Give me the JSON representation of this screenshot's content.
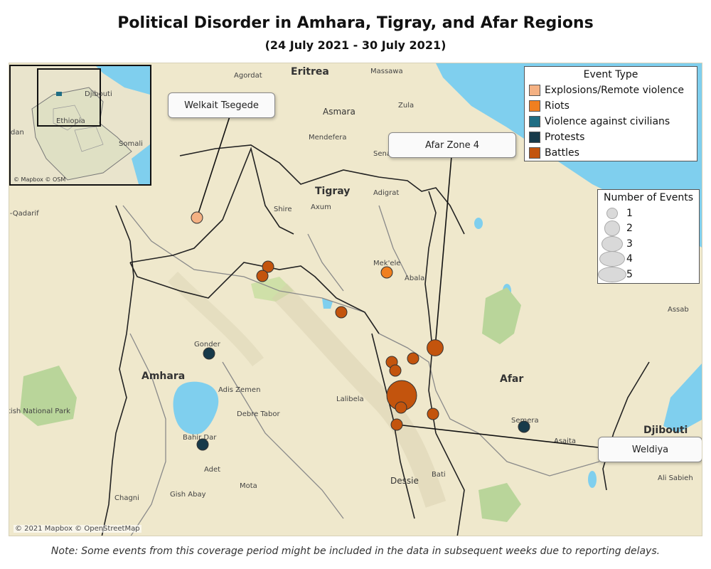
{
  "title": "Political Disorder in Amhara, Tigray, and Afar Regions",
  "subtitle": "(24 July 2021 - 30 July 2021)",
  "note": "Note: Some events from this coverage period might be included in the data in subsequent weeks due to reporting delays.",
  "map_credit": "© 2021 Mapbox © OpenStreetMap",
  "inset": {
    "credit": "© Mapbox © OSM",
    "labels": {
      "djibouti": "Djibouti",
      "ethiopia": "Ethiopia",
      "somali": "Somali",
      "sudan": "dan"
    }
  },
  "legend_event_type": {
    "title": "Event Type",
    "items": [
      {
        "label": "Explosions/Remote violence",
        "color": "#f4b183"
      },
      {
        "label": "Riots",
        "color": "#f07f1f"
      },
      {
        "label": "Violence against civilians",
        "color": "#1f6e84"
      },
      {
        "label": "Protests",
        "color": "#173a4a"
      },
      {
        "label": "Battles",
        "color": "#c3540d"
      }
    ]
  },
  "legend_size": {
    "title": "Number of Events",
    "items": [
      "1",
      "2",
      "3",
      "4",
      "5"
    ]
  },
  "callouts": {
    "welkait": "Welkait Tsegede",
    "afar4": "Afar Zone 4",
    "weldiya": "Weldiya"
  },
  "places": {
    "eritrea": "Eritrea",
    "tigray": "Tigray",
    "amhara": "Amhara",
    "afar": "Afar",
    "djibouti": "Djibouti",
    "agordat": "Agordat",
    "massawa": "Massawa",
    "asmara": "Asmara",
    "zula": "Zula",
    "mendefera": "Mendefera",
    "senafe": "Sena",
    "adigrat": "Adigrat",
    "shire": "Shire",
    "axum": "Axum",
    "mekele": "Mek'ele",
    "abala": "Abala",
    "qadarif": "l-Qadarif",
    "gonder": "Gonder",
    "adis_zemen": "Adis Zemen",
    "debre_tabor": "Debre Tabor",
    "lalibela": "Lalibela",
    "bahir_dar": "Bahir Dar",
    "adet": "Adet",
    "mota": "Mota",
    "gish_abay": "Gish Abay",
    "chagni": "Chagni",
    "dessie": "Dessie",
    "bati": "Bati",
    "semera": "Semera",
    "asaita": "Asaita",
    "ali_sabieh": "Ali Sabieh",
    "assab": "Assab",
    "national_park": "tish National Park"
  },
  "events": [
    {
      "type": "Explosions/Remote violence",
      "count": 1,
      "lon_label": "Welkait Tsegede"
    },
    {
      "type": "Battles",
      "count": 1
    },
    {
      "type": "Battles",
      "count": 1
    },
    {
      "type": "Riots",
      "count": 1,
      "lon_label": "Mek'ele"
    },
    {
      "type": "Battles",
      "count": 1
    },
    {
      "type": "Protests",
      "count": 1,
      "lon_label": "Gonder"
    },
    {
      "type": "Battles",
      "count": 2,
      "lon_label": "Afar Zone 4"
    },
    {
      "type": "Battles",
      "count": 1
    },
    {
      "type": "Battles",
      "count": 1
    },
    {
      "type": "Battles",
      "count": 1
    },
    {
      "type": "Battles",
      "count": 5
    },
    {
      "type": "Battles",
      "count": 1
    },
    {
      "type": "Battles",
      "count": 1
    },
    {
      "type": "Battles",
      "count": 1,
      "lon_label": "Weldiya"
    },
    {
      "type": "Protests",
      "count": 1,
      "lon_label": "Semera"
    },
    {
      "type": "Protests",
      "count": 1,
      "lon_label": "Bahir Dar"
    }
  ],
  "colors": {
    "land": "#efe8cc",
    "water": "#7fcfee",
    "park": "#b9d59a",
    "border": "#222222",
    "region_border": "#8a8a8a"
  }
}
